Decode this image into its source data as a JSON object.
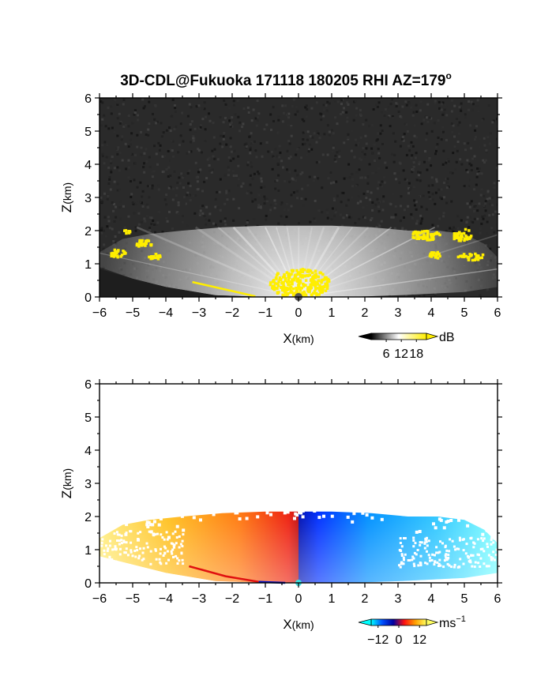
{
  "chart_data": [
    {
      "type": "heatmap",
      "title": "3D-CDL@Fukuoka 171118 180205 RHI AZ=179",
      "title_superscript": "o",
      "xlabel_main": "X",
      "xlabel_unit": "(km)",
      "ylabel_main": "Z",
      "ylabel_unit": "(km)",
      "xlim": [
        -6,
        6
      ],
      "ylim": [
        0,
        6
      ],
      "xticks": [
        "−6",
        "−5",
        "−4",
        "−3",
        "−2",
        "−1",
        "0",
        "1",
        "2",
        "3",
        "4",
        "5",
        "6"
      ],
      "yticks": [
        "0",
        "1",
        "2",
        "3",
        "4",
        "5",
        "6"
      ],
      "quantity": "backscatter intensity",
      "colorbar": {
        "unit": "dB",
        "ticks": [
          "6",
          "12",
          "18"
        ],
        "tick_values": [
          6,
          12,
          18
        ],
        "range": [
          0,
          22
        ],
        "colors": [
          "#000000",
          "#ffffff",
          "#ffee00"
        ]
      },
      "background_color": "#2a2a2a",
      "highlight_color": "#ffee00",
      "echo_top_km": 2.1
    },
    {
      "type": "heatmap",
      "title": "",
      "xlabel_main": "X",
      "xlabel_unit": "(km)",
      "ylabel_main": "Z",
      "ylabel_unit": "(km)",
      "xlim": [
        -6,
        6
      ],
      "ylim": [
        0,
        6
      ],
      "xticks": [
        "−6",
        "−5",
        "−4",
        "−3",
        "−2",
        "−1",
        "0",
        "1",
        "2",
        "3",
        "4",
        "5",
        "6"
      ],
      "yticks": [
        "0",
        "1",
        "2",
        "3",
        "4",
        "5",
        "6"
      ],
      "quantity": "radial velocity",
      "colorbar": {
        "unit": "ms",
        "unit_superscript": "−1",
        "ticks": [
          "−12",
          "0",
          "12"
        ],
        "tick_values": [
          -12,
          0,
          12
        ],
        "range": [
          -16,
          16
        ],
        "colors": [
          "#00ffff",
          "#0050ff",
          "#0000a0",
          "#ff1010",
          "#ffa000",
          "#ffff60"
        ]
      },
      "echo_top_km": 2.1
    }
  ]
}
